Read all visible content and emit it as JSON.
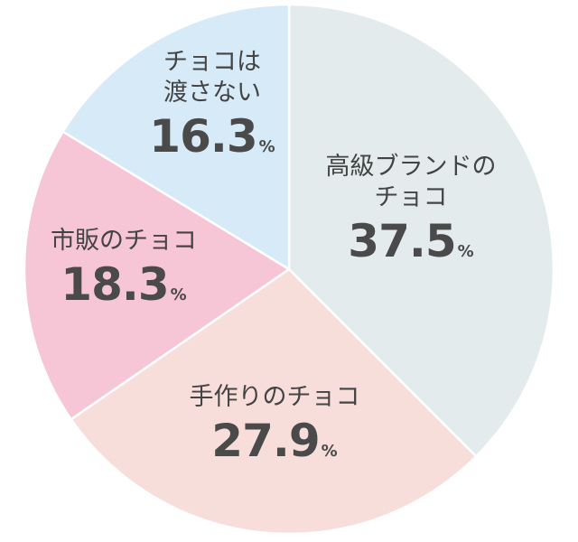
{
  "chart_data": {
    "type": "pie",
    "unit": "%",
    "slices": [
      {
        "label_lines": [
          "高級ブランドの",
          "チョコ"
        ],
        "value": 37.5,
        "value_text": "37.5",
        "color": "#e3ebec"
      },
      {
        "label_lines": [
          "手作りのチョコ"
        ],
        "value": 27.9,
        "value_text": "27.9",
        "color": "#f7dedb"
      },
      {
        "label_lines": [
          "市販のチョコ"
        ],
        "value": 18.3,
        "value_text": "18.3",
        "color": "#f7c6d6"
      },
      {
        "label_lines": [
          "チョコは",
          "渡さない"
        ],
        "value": 16.3,
        "value_text": "16.3",
        "color": "#d6eaf7"
      }
    ]
  }
}
